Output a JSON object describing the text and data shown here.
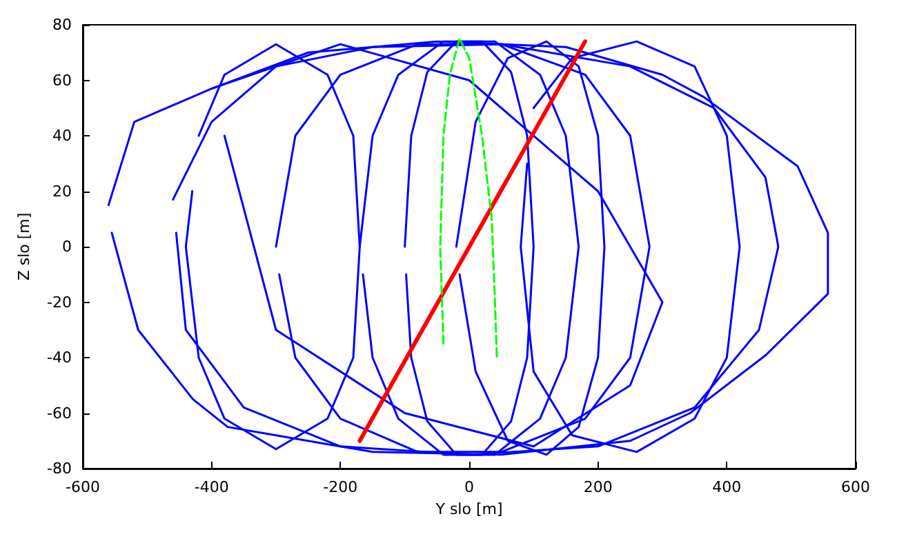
{
  "chart_data": {
    "type": "line",
    "xlabel": "Y slo [m]",
    "ylabel": "Z slo [m]",
    "xlim": [
      -600,
      600
    ],
    "xticks": [
      -600,
      -400,
      -200,
      0,
      200,
      400,
      600
    ],
    "ylim": [
      -80,
      80
    ],
    "yticks": [
      -80,
      -60,
      -40,
      -20,
      0,
      20,
      40,
      60,
      80
    ],
    "marker": "none",
    "line_style": "solid",
    "series": [
      {
        "color": "#0000ff",
        "x": [
          -560,
          -520,
          -400,
          -250,
          -50,
          150,
          300,
          364,
          510,
          557,
          557,
          461,
          343,
          250,
          50,
          -150,
          -300,
          -375,
          -429,
          -514,
          -555
        ],
        "values": [
          15,
          45,
          57,
          70,
          74,
          72,
          62,
          54,
          29,
          5,
          -17,
          -39,
          -60,
          -70,
          -75,
          -74,
          -68,
          -65,
          -55,
          -30,
          5
        ]
      },
      {
        "color": "#0000ff",
        "x": [
          -460,
          -400,
          -300,
          -150,
          50,
          250,
          380,
          460,
          480,
          450,
          350,
          200,
          0,
          -200,
          -350,
          -440,
          -455
        ],
        "values": [
          17,
          45,
          65,
          72,
          73,
          65,
          50,
          25,
          0,
          -30,
          -58,
          -72,
          -75,
          -72,
          -58,
          -30,
          5
        ]
      },
      {
        "color": "#0000ff",
        "x": [
          -300,
          -270,
          -200,
          -80,
          50,
          180,
          250,
          280,
          250,
          180,
          50,
          -80,
          -200,
          -270,
          -295
        ],
        "values": [
          0,
          40,
          62,
          73,
          73,
          62,
          40,
          0,
          -40,
          -62,
          -74,
          -74,
          -62,
          -40,
          -10
        ]
      },
      {
        "color": "#0000ff",
        "x": [
          -170,
          -150,
          -110,
          -40,
          40,
          110,
          150,
          170,
          150,
          110,
          40,
          -40,
          -110,
          -150,
          -165
        ],
        "values": [
          0,
          40,
          62,
          74,
          74,
          62,
          40,
          0,
          -40,
          -62,
          -75,
          -75,
          -62,
          -40,
          -10
        ]
      },
      {
        "color": "#0000ff",
        "x": [
          -100,
          -90,
          -65,
          -20,
          20,
          65,
          90,
          100,
          90,
          65,
          20,
          -20,
          -65,
          -90,
          -98
        ],
        "values": [
          0,
          40,
          63,
          74,
          74,
          63,
          40,
          0,
          -40,
          -63,
          -75,
          -75,
          -63,
          -40,
          -10
        ]
      },
      {
        "color": "#0000ff",
        "x": [
          -20,
          10,
          60,
          120,
          170,
          200,
          210,
          200,
          170,
          120,
          60,
          10,
          -15
        ],
        "values": [
          0,
          45,
          68,
          74,
          65,
          40,
          0,
          -40,
          -65,
          -75,
          -70,
          -45,
          -10
        ]
      },
      {
        "color": "#0000ff",
        "x": [
          100,
          160,
          260,
          350,
          400,
          420,
          400,
          350,
          260,
          160,
          100,
          80,
          90
        ],
        "values": [
          50,
          68,
          74,
          65,
          40,
          0,
          -40,
          -62,
          -74,
          -68,
          -45,
          0,
          30
        ]
      },
      {
        "color": "#0000ff",
        "x": [
          -420,
          -380,
          -300,
          -220,
          -180,
          -170,
          -180,
          -220,
          -300,
          -380,
          -420,
          -440,
          -430
        ],
        "values": [
          40,
          62,
          73,
          62,
          40,
          0,
          -40,
          -62,
          -73,
          -62,
          -40,
          0,
          20
        ]
      },
      {
        "color": "#0000ff",
        "x": [
          -400,
          -200,
          0,
          200,
          300,
          250,
          100,
          -100,
          -300,
          -380
        ],
        "values": [
          57,
          73,
          60,
          20,
          -20,
          -50,
          -72,
          -60,
          -30,
          40
        ]
      },
      {
        "color": "#ff0000",
        "x": [
          -170,
          180
        ],
        "values": [
          -70,
          74
        ]
      },
      {
        "color": "#00ff00",
        "line_style": "dashed",
        "x": [
          -40,
          -45,
          -40,
          -30,
          -15,
          0,
          20,
          35,
          40,
          43
        ],
        "values": [
          -35,
          0,
          40,
          62,
          75,
          68,
          40,
          10,
          -20,
          -40
        ]
      }
    ]
  }
}
